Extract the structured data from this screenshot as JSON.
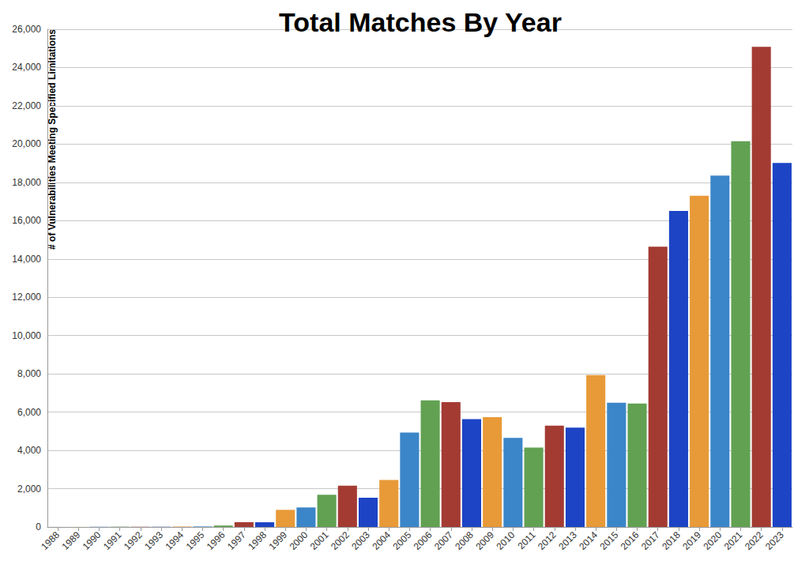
{
  "chart_data": {
    "type": "bar",
    "title": "Total Matches By Year",
    "y_label": "# of Vulnerabilities Meeting Specified Limitations",
    "categories": [
      "1988",
      "1989",
      "1990",
      "1991",
      "1992",
      "1993",
      "1994",
      "1995",
      "1996",
      "1997",
      "1998",
      "1999",
      "2000",
      "2001",
      "2002",
      "2003",
      "2004",
      "2005",
      "2006",
      "2007",
      "2008",
      "2009",
      "2010",
      "2011",
      "2012",
      "2013",
      "2014",
      "2015",
      "2016",
      "2017",
      "2018",
      "2019",
      "2020",
      "2021",
      "2022",
      "2023"
    ],
    "values": [
      2,
      3,
      11,
      15,
      13,
      13,
      25,
      25,
      75,
      252,
      246,
      894,
      1020,
      1677,
      2156,
      1527,
      2451,
      4935,
      6610,
      6520,
      5632,
      5736,
      4652,
      4150,
      5288,
      5187,
      7937,
      6487,
      6447,
      14643,
      16509,
      17305,
      18350,
      20155,
      25084,
      19010
    ],
    "colors": [
      "#1c44c4",
      "#e89a38",
      "#3b86c8",
      "#62a152",
      "#a33b33",
      "#1c44c4",
      "#e89a38",
      "#3b86c8",
      "#62a152",
      "#a33b33",
      "#1c44c4",
      "#e89a38",
      "#3b86c8",
      "#62a152",
      "#a33b33",
      "#1c44c4",
      "#e89a38",
      "#3b86c8",
      "#62a152",
      "#a33b33",
      "#1c44c4",
      "#e89a38",
      "#3b86c8",
      "#62a152",
      "#a33b33",
      "#1c44c4",
      "#e89a38",
      "#3b86c8",
      "#62a152",
      "#a33b33",
      "#1c44c4",
      "#e89a38",
      "#3b86c8",
      "#62a152",
      "#a33b33",
      "#1c44c4"
    ],
    "ylim": [
      0,
      26000
    ],
    "yticks": [
      0,
      {
        "value": 2000,
        "label": "2,000"
      },
      {
        "value": 4000,
        "label": "4,000"
      },
      {
        "value": 6000,
        "label": "6,000"
      },
      {
        "value": 8000,
        "label": "8,000"
      },
      {
        "value": 10000,
        "label": "10,000"
      },
      {
        "value": 12000,
        "label": "12,000"
      },
      {
        "value": 14000,
        "label": "14,000"
      },
      {
        "value": 16000,
        "label": "16,000"
      },
      {
        "value": 18000,
        "label": "18,000"
      },
      {
        "value": 20000,
        "label": "20,000"
      },
      {
        "value": 22000,
        "label": "22,000"
      },
      {
        "value": 24000,
        "label": "24,000"
      },
      {
        "value": 26000,
        "label": "26,000"
      }
    ],
    "grid": true
  }
}
